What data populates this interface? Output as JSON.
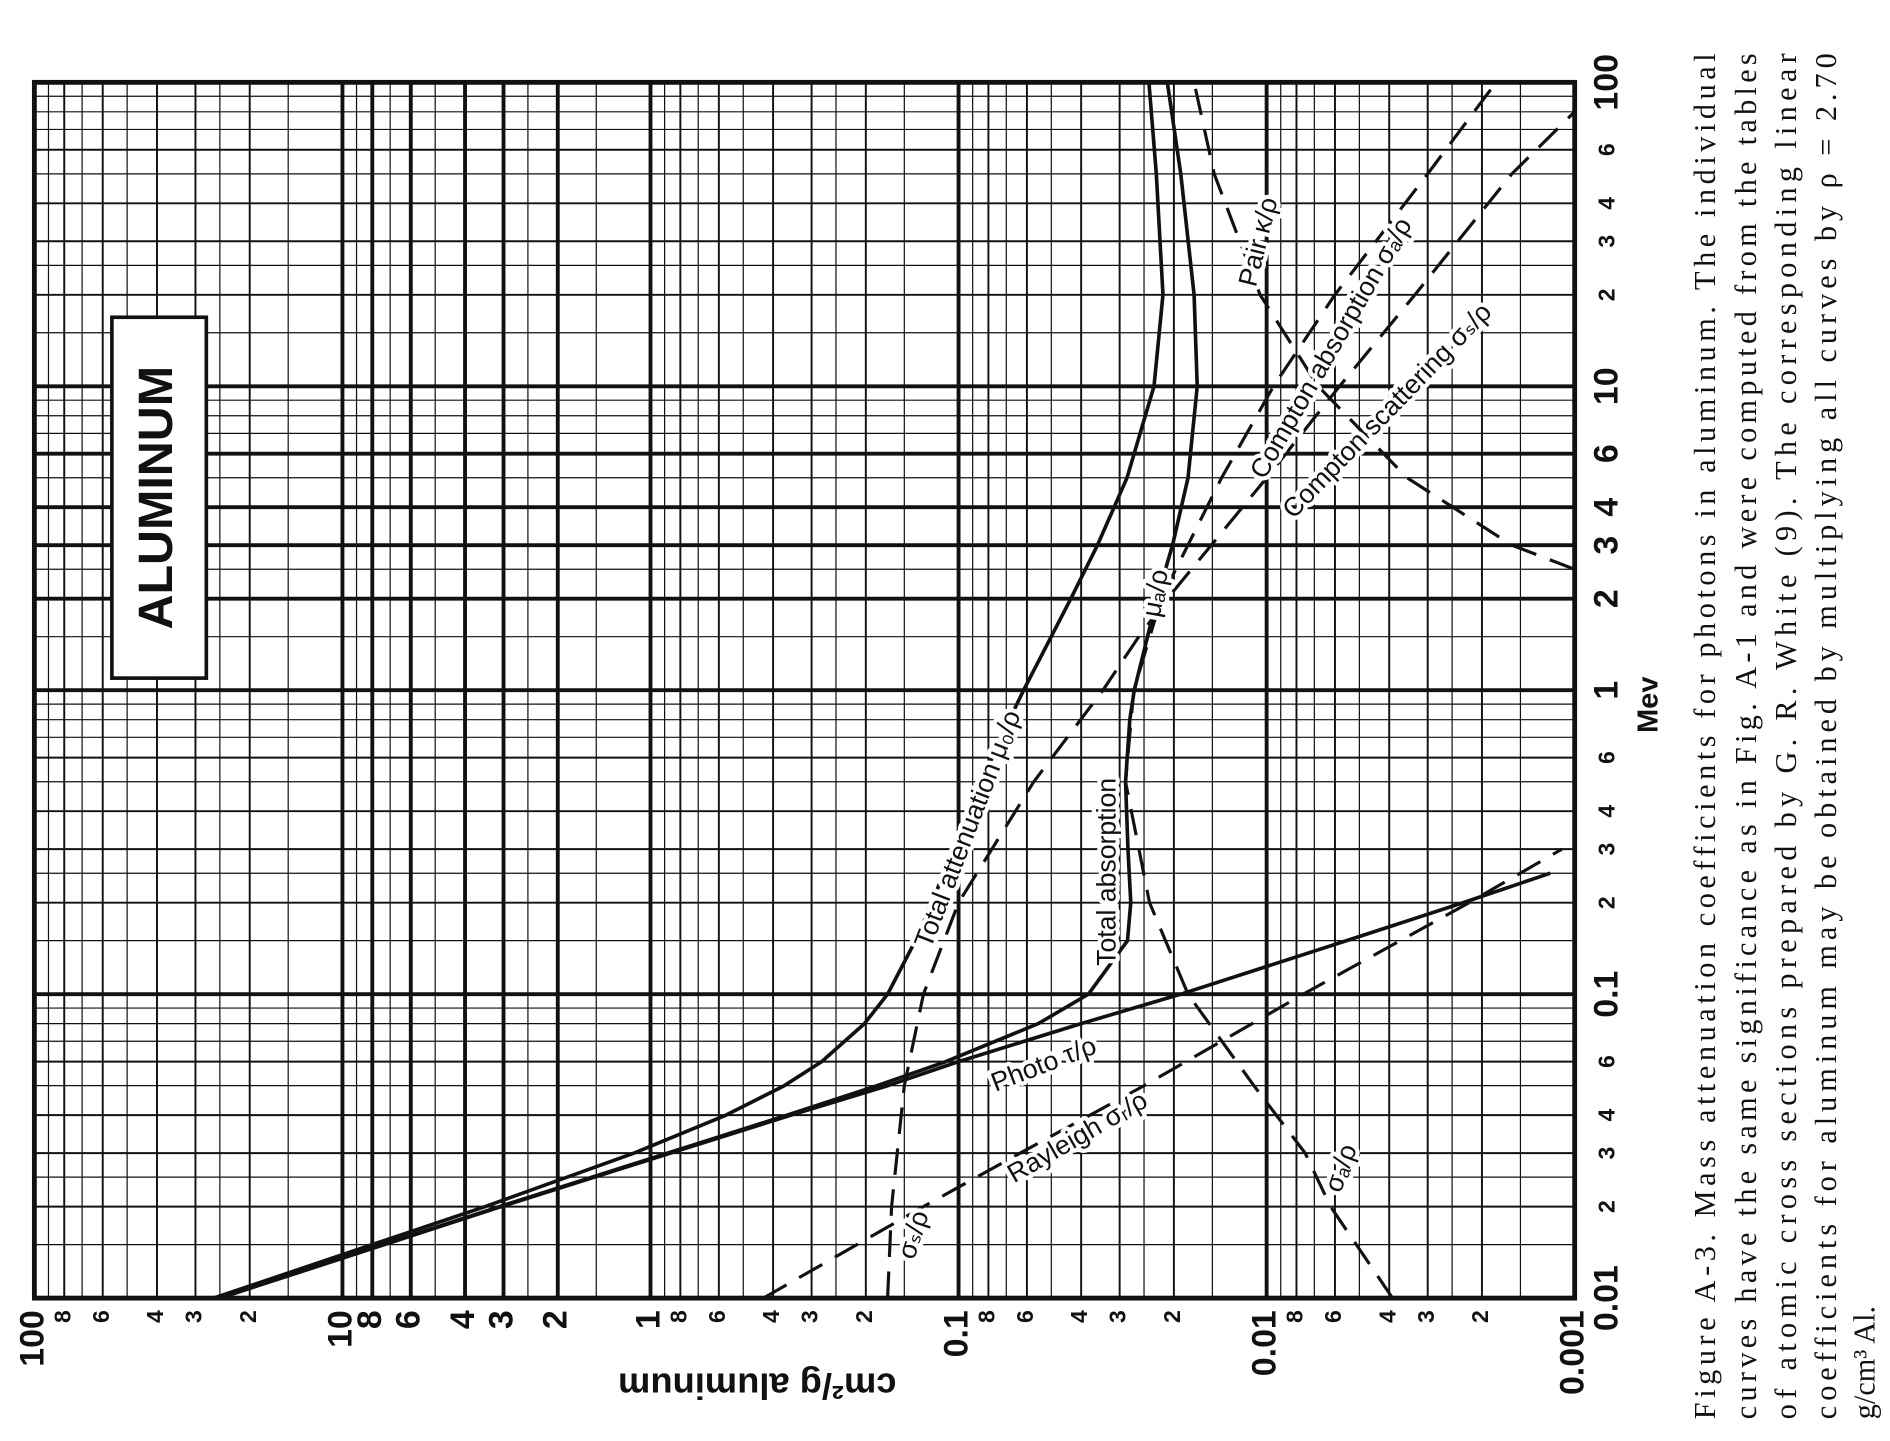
{
  "chart_data": {
    "type": "line",
    "title": "ALUMINUM",
    "xlabel": "Mev",
    "ylabel": "cm²/g aluminum",
    "color": "#111111",
    "log": true,
    "grid": true,
    "xlim": [
      0.01,
      100
    ],
    "ylim": [
      0.001,
      100
    ],
    "xticks": [
      0.01,
      {
        "value": 0.02,
        "label": "2"
      },
      {
        "value": 0.03,
        "label": "3"
      },
      {
        "value": 0.04,
        "label": "4"
      },
      {
        "value": 0.06,
        "label": "6"
      },
      0.1,
      {
        "value": 0.2,
        "label": "2"
      },
      {
        "value": 0.3,
        "label": "3"
      },
      {
        "value": 0.4,
        "label": "4"
      },
      {
        "value": 0.6,
        "label": "6"
      },
      1,
      2,
      3,
      4,
      6,
      10,
      {
        "value": 20,
        "label": "2"
      },
      {
        "value": 30,
        "label": "3"
      },
      {
        "value": 40,
        "label": "4"
      },
      {
        "value": 60,
        "label": "6"
      },
      100
    ],
    "xminor": [
      0.015,
      0.025,
      0.05,
      0.07,
      0.08,
      0.09,
      0.15,
      0.25,
      0.5,
      0.7,
      0.8,
      0.9,
      1.5,
      2.5,
      5,
      7,
      8,
      9,
      15,
      25,
      50,
      70,
      80,
      90
    ],
    "yticks": [
      100,
      {
        "value": 80,
        "label": "8"
      },
      {
        "value": 60,
        "label": "6"
      },
      {
        "value": 40,
        "label": "4"
      },
      {
        "value": 30,
        "label": "3"
      },
      {
        "value": 20,
        "label": "2"
      },
      10,
      8,
      6,
      4,
      3,
      2,
      1,
      {
        "value": 0.8,
        "label": "8"
      },
      {
        "value": 0.6,
        "label": "6"
      },
      {
        "value": 0.4,
        "label": "4"
      },
      {
        "value": 0.3,
        "label": "3"
      },
      {
        "value": 0.2,
        "label": "2"
      },
      0.1,
      {
        "value": 0.08,
        "label": "8"
      },
      {
        "value": 0.06,
        "label": "6"
      },
      {
        "value": 0.04,
        "label": "4"
      },
      {
        "value": 0.03,
        "label": "3"
      },
      {
        "value": 0.02,
        "label": "2"
      },
      0.01,
      {
        "value": 0.008,
        "label": "8"
      },
      {
        "value": 0.006,
        "label": "6"
      },
      {
        "value": 0.004,
        "label": "4"
      },
      {
        "value": 0.003,
        "label": "3"
      },
      {
        "value": 0.002,
        "label": "2"
      },
      0.001
    ],
    "yminor": [
      90,
      70,
      50,
      25,
      15,
      9,
      7,
      5,
      2.5,
      1.5,
      0.9,
      0.7,
      0.5,
      0.25,
      0.15,
      0.09,
      0.07,
      0.05,
      0.025,
      0.015,
      0.009,
      0.007,
      0.005,
      0.0025,
      0.0015
    ],
    "series": [
      {
        "name": "Total attenuation μ₀/ρ",
        "dashed": false,
        "x": [
          0.01,
          0.02,
          0.03,
          0.04,
          0.05,
          0.06,
          0.08,
          0.1,
          0.15,
          0.2,
          0.3,
          0.5,
          0.8,
          1,
          2,
          3,
          5,
          10,
          20,
          50,
          100
        ],
        "values": [
          26.2,
          3.44,
          1.13,
          0.569,
          0.368,
          0.278,
          0.202,
          0.17,
          0.138,
          0.122,
          0.104,
          0.0844,
          0.0684,
          0.0615,
          0.0432,
          0.0354,
          0.0284,
          0.0232,
          0.0217,
          0.0228,
          0.0241
        ]
      },
      {
        "name": "Total absorption",
        "dashed": false,
        "x": [
          0.01,
          0.02,
          0.03,
          0.04,
          0.05,
          0.06,
          0.08,
          0.1,
          0.15,
          0.2,
          0.3,
          0.5,
          0.8,
          1,
          2,
          3,
          5,
          10,
          20,
          50,
          100
        ],
        "values": [
          25.4,
          3.09,
          0.878,
          0.36,
          0.184,
          0.11,
          0.0551,
          0.0379,
          0.0283,
          0.0276,
          0.0282,
          0.0287,
          0.0278,
          0.0269,
          0.0227,
          0.0202,
          0.018,
          0.0168,
          0.0172,
          0.019,
          0.021
        ]
      },
      {
        "name": "Photo τ/ρ",
        "dashed": false,
        "x": [
          0.01,
          0.02,
          0.03,
          0.04,
          0.05,
          0.06,
          0.08,
          0.1,
          0.15,
          0.2,
          0.25
        ],
        "values": [
          25,
          3.05,
          0.86,
          0.35,
          0.17,
          0.1,
          0.04,
          0.019,
          0.0055,
          0.0023,
          0.0012
        ]
      },
      {
        "name": "Rayleigh σᵣ/ρ",
        "dashed": true,
        "x": [
          0.01,
          0.02,
          0.03,
          0.05,
          0.1,
          0.2,
          0.3
        ],
        "values": [
          0.43,
          0.13,
          0.063,
          0.025,
          0.0076,
          0.0022,
          0.0011
        ]
      },
      {
        "name": "Compton scattering σₛ/ρ",
        "dashed": true,
        "x": [
          0.01,
          0.02,
          0.05,
          0.1,
          0.2,
          0.5,
          1,
          1.5,
          2,
          5,
          10,
          20,
          50,
          80
        ],
        "values": [
          0.17,
          0.165,
          0.15,
          0.13,
          0.1,
          0.057,
          0.034,
          0.026,
          0.021,
          0.01,
          0.0058,
          0.0033,
          0.0016,
          0.001
        ]
      },
      {
        "name": "Compton absorption σₐ/ρ",
        "dashed": true,
        "x": [
          0.01,
          0.02,
          0.03,
          0.05,
          0.1,
          0.2,
          0.5,
          1,
          2,
          5,
          10,
          20,
          50,
          100
        ],
        "values": [
          0.0039,
          0.0062,
          0.0075,
          0.011,
          0.018,
          0.024,
          0.0287,
          0.027,
          0.022,
          0.014,
          0.0095,
          0.006,
          0.003,
          0.0018
        ]
      },
      {
        "name": "Pair κ/ρ",
        "dashed": true,
        "x": [
          2.5,
          3,
          5,
          10,
          20,
          50,
          100
        ],
        "values": [
          0.001,
          0.0016,
          0.0035,
          0.0068,
          0.0105,
          0.0148,
          0.0172
        ]
      }
    ],
    "annotations": [
      "μₐ/ρ",
      "σₛ/ρ",
      "σₐ/ρ"
    ],
    "caption": [
      "Figure A-3. Mass attenuation coefficients for photons in aluminum.   The individual",
      "curves have the same significance as in Fig. A-1 and were computed from the tables",
      "of atomic cross sections prepared by G. R. White (9).     The corresponding linear",
      "coefficients for aluminum may be obtained by multiplying all curves by ρ = 2.70",
      "g/cm³ Al."
    ]
  }
}
